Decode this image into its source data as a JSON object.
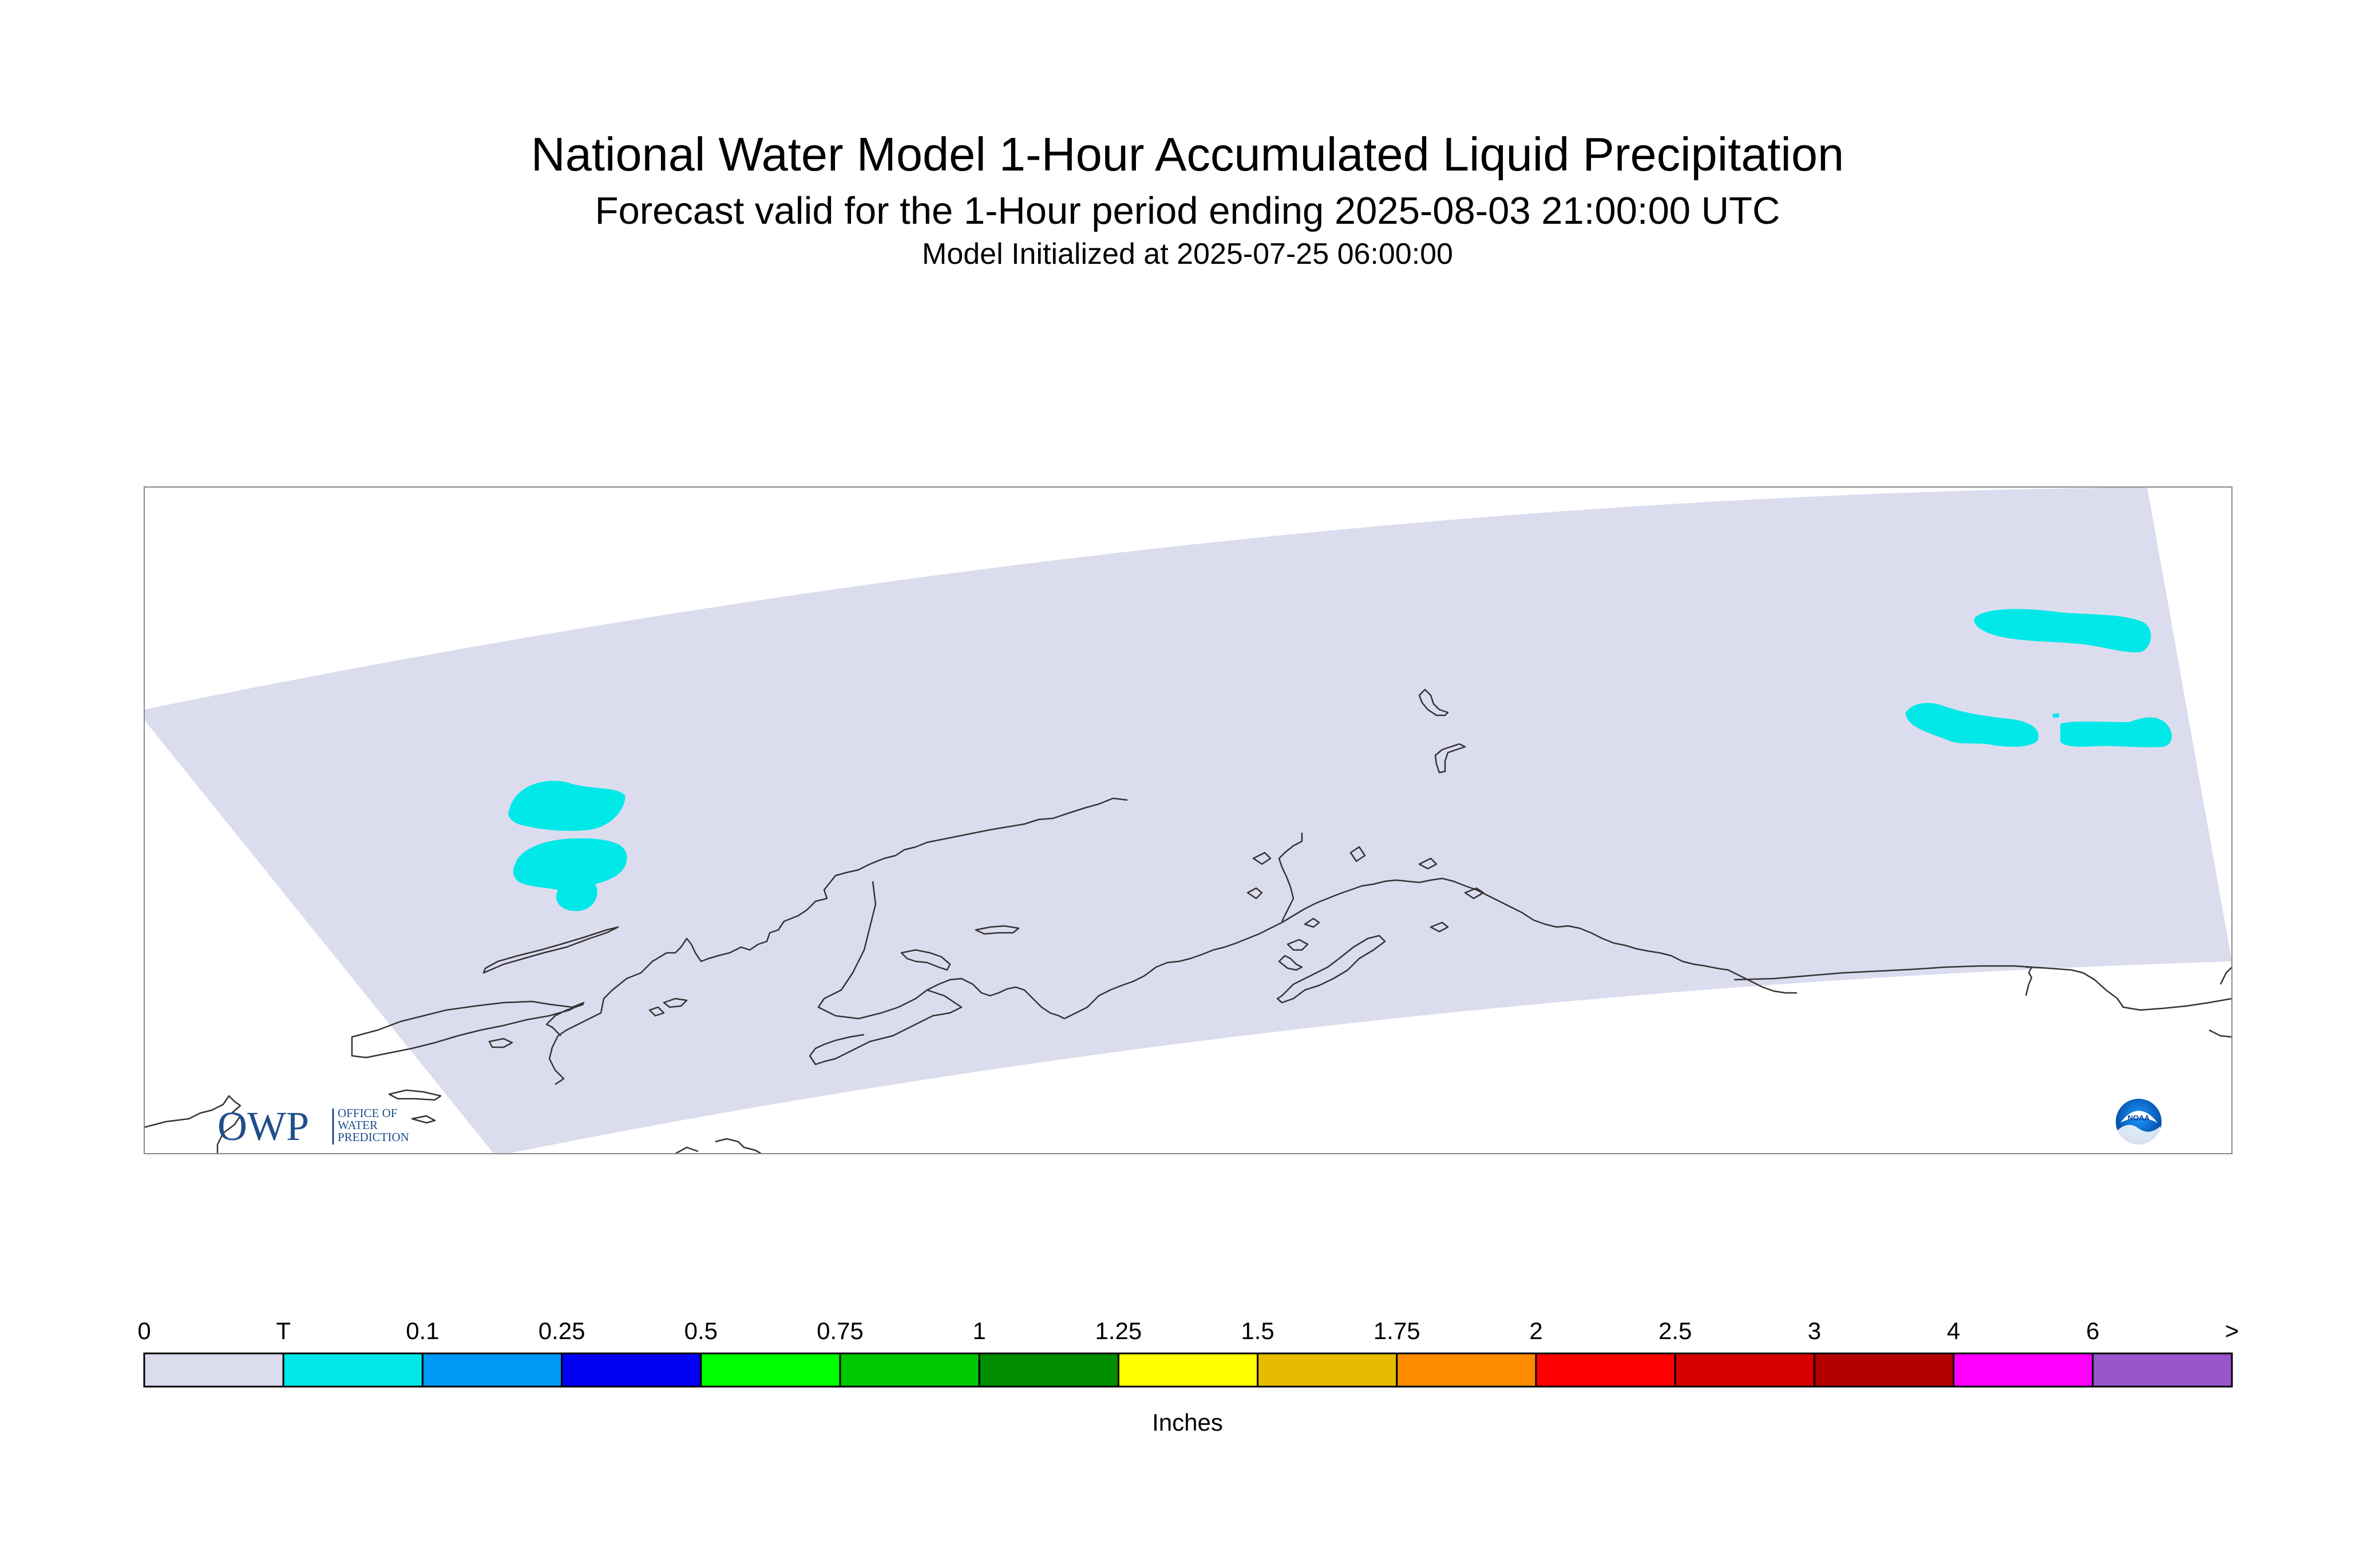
{
  "titles": {
    "main": "National Water Model 1-Hour Accumulated Liquid Precipitation",
    "forecast": "Forecast valid for the 1-Hour period ending 2025-08-03 21:00:00 UTC",
    "init": "Model Initialized at 2025-07-25 06:00:00"
  },
  "logos": {
    "owp_text": "OWP",
    "owp_subtext": [
      "OFFICE OF",
      "WATER",
      "PREDICTION"
    ],
    "noaa_text": "NOAA"
  },
  "legend": {
    "units": "Inches",
    "labels": [
      "0",
      "T",
      "0.1",
      "0.25",
      "0.5",
      "0.75",
      "1",
      "1.25",
      "1.5",
      "1.75",
      "2",
      "2.5",
      "3",
      "4",
      "6",
      ">"
    ],
    "colors": [
      "#dcdcef",
      "#00e8e8",
      "#0099f5",
      "#0000f5",
      "#00ff00",
      "#00c800",
      "#008e00",
      "#ffff00",
      "#e7bc00",
      "#ff8c00",
      "#ff0000",
      "#d60000",
      "#b50000",
      "#ff00ff",
      "#9955cc"
    ]
  },
  "colors": {
    "domain_fill": "#dcdcef",
    "precip_trace": "#00e8e8",
    "coastline": "#333333",
    "frame": "#888888"
  }
}
